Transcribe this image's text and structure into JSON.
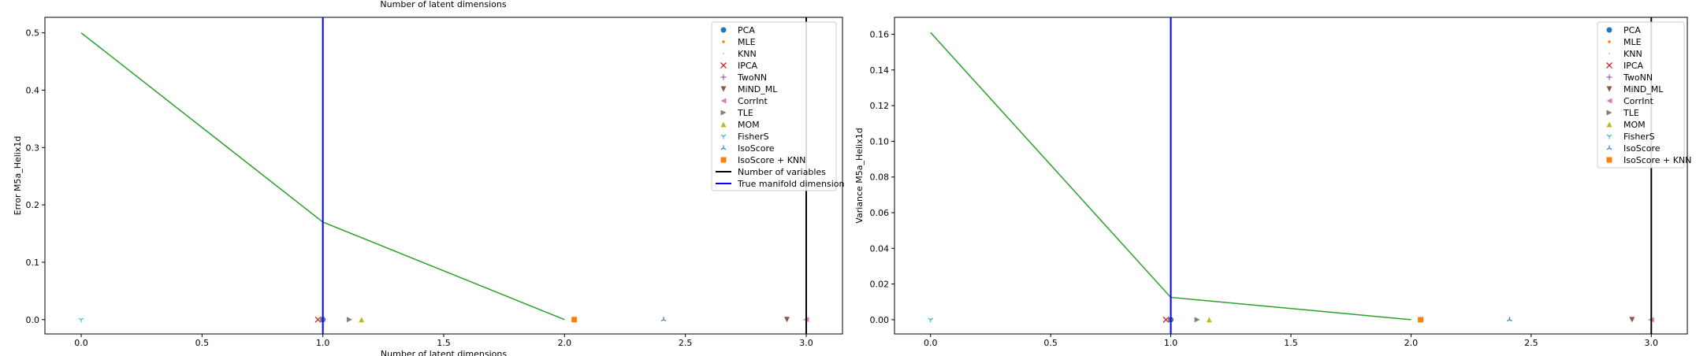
{
  "top_caption": "Number of latent dimensions",
  "chart_data": [
    {
      "type": "scatter",
      "title": "",
      "xlabel": "Number of latent dimensions",
      "ylabel": "Error M5a_Helix1d",
      "xlim": [
        -0.15,
        3.15
      ],
      "ylim": [
        -0.025,
        0.527
      ],
      "xticks": [
        "0.0",
        "0.5",
        "1.0",
        "1.5",
        "2.0",
        "2.5",
        "3.0"
      ],
      "yticks": [
        "0.0",
        "0.1",
        "0.2",
        "0.3",
        "0.4",
        "0.5"
      ],
      "xtick_values": [
        0,
        0.5,
        1,
        1.5,
        2,
        2.5,
        3
      ],
      "ytick_values": [
        0,
        0.1,
        0.2,
        0.3,
        0.4,
        0.5
      ],
      "legend_position": "top-right",
      "legend": [
        "PCA",
        "MLE",
        "KNN",
        "IPCA",
        "TwoNN",
        "MiND_ML",
        "CorrInt",
        "TLE",
        "MOM",
        "FisherS",
        "IsoScore",
        "IsoScore + KNN",
        "Number of variables",
        "True manifold dimension"
      ],
      "series": [
        {
          "name": "PCA",
          "marker": "circle",
          "color": "#1f77b4",
          "x": [
            1.0
          ],
          "y": [
            0.0
          ]
        },
        {
          "name": "MLE",
          "marker": "point",
          "color": "#ff7f0e",
          "x": [
            1.0
          ],
          "y": [
            0.0
          ]
        },
        {
          "name": "KNN",
          "marker": "pixel",
          "color": "#2ca02c",
          "x": [
            1.0
          ],
          "y": [
            0.0
          ]
        },
        {
          "name": "IPCA",
          "marker": "x",
          "color": "#d62728",
          "x": [
            0.98
          ],
          "y": [
            0.0
          ]
        },
        {
          "name": "TwoNN",
          "marker": "plus",
          "color": "#9467bd",
          "x": [
            3.0
          ],
          "y": [
            0.0
          ]
        },
        {
          "name": "MiND_ML",
          "marker": "triangle_down",
          "color": "#8c564b",
          "x": [
            2.92
          ],
          "y": [
            0.0
          ]
        },
        {
          "name": "CorrInt",
          "marker": "triangle_left",
          "color": "#e377c2",
          "x": [
            3.0
          ],
          "y": [
            0.0
          ]
        },
        {
          "name": "TLE",
          "marker": "triangle_right",
          "color": "#7f7f7f",
          "x": [
            1.11
          ],
          "y": [
            0.0
          ]
        },
        {
          "name": "MOM",
          "marker": "triangle_up",
          "color": "#bcbd22",
          "x": [
            1.16
          ],
          "y": [
            0.0
          ]
        },
        {
          "name": "FisherS",
          "marker": "tri_down",
          "color": "#17becf",
          "x": [
            0.0
          ],
          "y": [
            0.0
          ]
        },
        {
          "name": "IsoScore",
          "marker": "tri_up",
          "color": "#1f77b4",
          "x": [
            2.41
          ],
          "y": [
            0.0
          ]
        },
        {
          "name": "IsoScore + KNN",
          "marker": "square",
          "color": "#ff7f0e",
          "x": [
            2.04
          ],
          "y": [
            0.0
          ]
        }
      ],
      "line": {
        "color": "#2ca02c",
        "x": [
          0.0,
          1.0,
          2.0
        ],
        "y": [
          0.5,
          0.17,
          0.0
        ]
      },
      "vlines": [
        {
          "name": "Number of variables",
          "x": 3.0,
          "color": "#000000"
        },
        {
          "name": "True manifold dimension",
          "x": 1.0,
          "color": "#0000ff"
        }
      ]
    },
    {
      "type": "scatter",
      "title": "",
      "xlabel": "",
      "ylabel": "Variance M5a_Helix1d",
      "xlim": [
        -0.15,
        3.15
      ],
      "ylim": [
        -0.008,
        0.1695
      ],
      "xticks": [
        "0.0",
        "0.5",
        "1.0",
        "1.5",
        "2.0",
        "2.5",
        "3.0"
      ],
      "yticks": [
        "0.00",
        "0.02",
        "0.04",
        "0.06",
        "0.08",
        "0.10",
        "0.12",
        "0.14",
        "0.16"
      ],
      "xtick_values": [
        0,
        0.5,
        1,
        1.5,
        2,
        2.5,
        3
      ],
      "ytick_values": [
        0,
        0.02,
        0.04,
        0.06,
        0.08,
        0.1,
        0.12,
        0.14,
        0.16
      ],
      "legend_position": "top-right",
      "legend": [
        "PCA",
        "MLE",
        "KNN",
        "IPCA",
        "TwoNN",
        "MiND_ML",
        "CorrInt",
        "TLE",
        "MOM",
        "FisherS",
        "IsoScore",
        "IsoScore + KNN"
      ],
      "series": [
        {
          "name": "PCA",
          "marker": "circle",
          "color": "#1f77b4",
          "x": [
            1.0
          ],
          "y": [
            0.0
          ]
        },
        {
          "name": "MLE",
          "marker": "point",
          "color": "#ff7f0e",
          "x": [
            1.0
          ],
          "y": [
            0.0
          ]
        },
        {
          "name": "KNN",
          "marker": "pixel",
          "color": "#2ca02c",
          "x": [
            1.0
          ],
          "y": [
            0.0
          ]
        },
        {
          "name": "IPCA",
          "marker": "x",
          "color": "#d62728",
          "x": [
            0.98
          ],
          "y": [
            0.0
          ]
        },
        {
          "name": "TwoNN",
          "marker": "plus",
          "color": "#9467bd",
          "x": [
            3.0
          ],
          "y": [
            0.0
          ]
        },
        {
          "name": "MiND_ML",
          "marker": "triangle_down",
          "color": "#8c564b",
          "x": [
            2.92
          ],
          "y": [
            0.0
          ]
        },
        {
          "name": "CorrInt",
          "marker": "triangle_left",
          "color": "#e377c2",
          "x": [
            3.0
          ],
          "y": [
            0.0
          ]
        },
        {
          "name": "TLE",
          "marker": "triangle_right",
          "color": "#7f7f7f",
          "x": [
            1.11
          ],
          "y": [
            0.0
          ]
        },
        {
          "name": "MOM",
          "marker": "triangle_up",
          "color": "#bcbd22",
          "x": [
            1.16
          ],
          "y": [
            0.0
          ]
        },
        {
          "name": "FisherS",
          "marker": "tri_down",
          "color": "#17becf",
          "x": [
            0.0
          ],
          "y": [
            0.0
          ]
        },
        {
          "name": "IsoScore",
          "marker": "tri_up",
          "color": "#1f77b4",
          "x": [
            2.41
          ],
          "y": [
            0.0
          ]
        },
        {
          "name": "IsoScore + KNN",
          "marker": "square",
          "color": "#ff7f0e",
          "x": [
            2.04
          ],
          "y": [
            0.0
          ]
        }
      ],
      "line": {
        "color": "#2ca02c",
        "x": [
          0.0,
          1.0,
          2.0
        ],
        "y": [
          0.161,
          0.0125,
          0.0
        ]
      },
      "vlines": [
        {
          "name": "Number of variables",
          "x": 3.0,
          "color": "#000000"
        },
        {
          "name": "True manifold dimension",
          "x": 1.0,
          "color": "#0000ff"
        }
      ]
    }
  ]
}
